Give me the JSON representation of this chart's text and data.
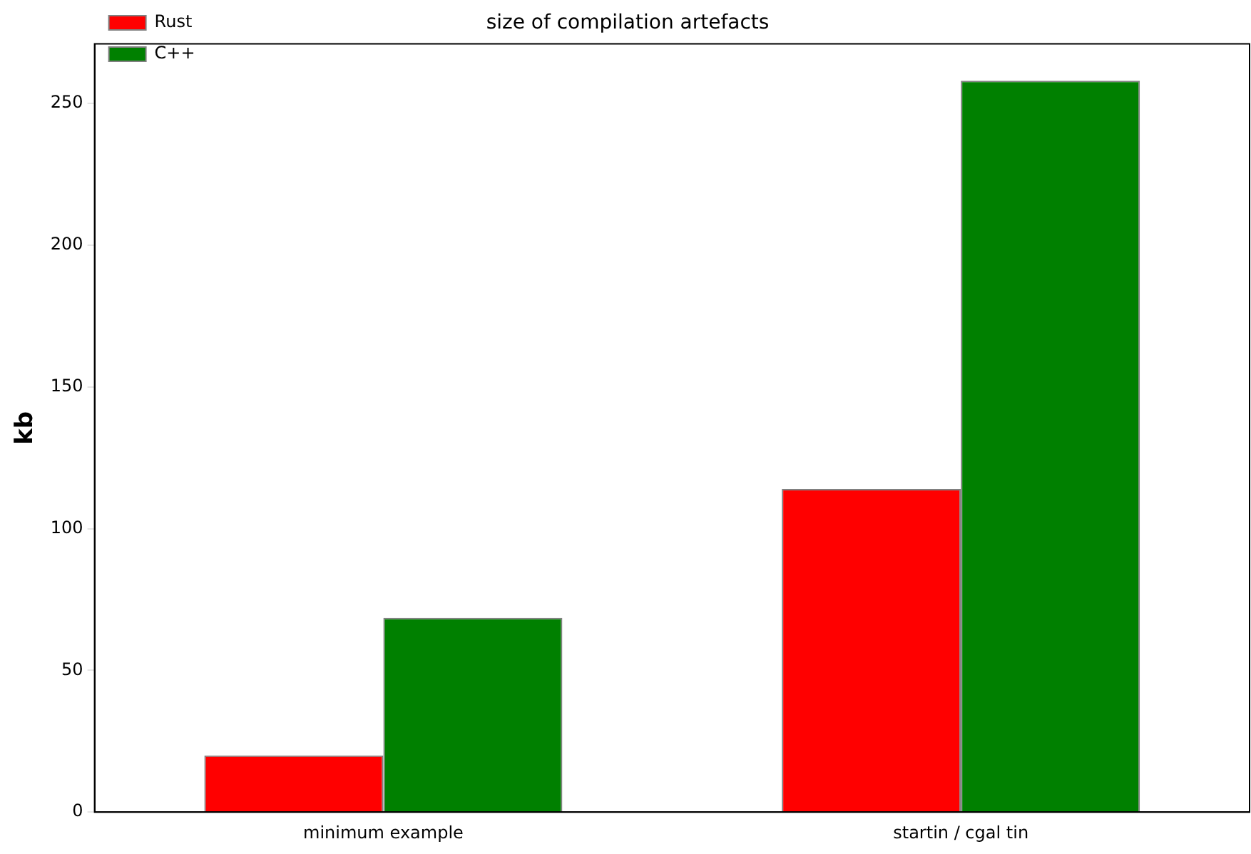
{
  "chart_data": {
    "type": "bar",
    "title": "size of compilation artefacts",
    "ylabel": "kb",
    "categories": [
      "minimum example",
      "startin / cgal tin"
    ],
    "series": [
      {
        "name": "Rust",
        "color": "#ff0000",
        "values": [
          20,
          114
        ]
      },
      {
        "name": "C++",
        "color": "#008000",
        "values": [
          68.5,
          258
        ]
      }
    ],
    "ylim": [
      0,
      271
    ],
    "yticks": [
      0,
      50,
      100,
      150,
      200,
      250
    ],
    "grid": false,
    "legend": "top left"
  }
}
